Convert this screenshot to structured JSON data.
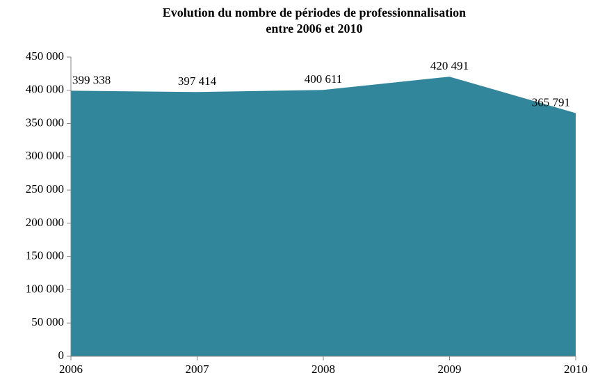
{
  "chart_data": {
    "type": "area",
    "title": [
      "Evolution du nombre de périodes de professionnalisation",
      "entre 2006 et 2010"
    ],
    "categories": [
      "2006",
      "2007",
      "2008",
      "2009",
      "2010"
    ],
    "values": [
      399338,
      397414,
      400611,
      420491,
      365791
    ],
    "value_labels": [
      "399 338",
      "397 414",
      "400 611",
      "420 491",
      "365 791"
    ],
    "color": "#31869b",
    "ylim": [
      0,
      450000
    ],
    "yticks": [
      0,
      {
        "value": 50000,
        "label": "50 000"
      },
      {
        "value": 100000,
        "label": "100 000"
      },
      {
        "value": 150000,
        "label": "150 000"
      },
      {
        "value": 200000,
        "label": "200 000"
      },
      {
        "value": 250000,
        "label": "250 000"
      },
      {
        "value": 300000,
        "label": "300 000"
      },
      {
        "value": 350000,
        "label": "350 000"
      },
      {
        "value": 400000,
        "label": "400 000"
      },
      {
        "value": 450000,
        "label": "450 000"
      }
    ]
  }
}
